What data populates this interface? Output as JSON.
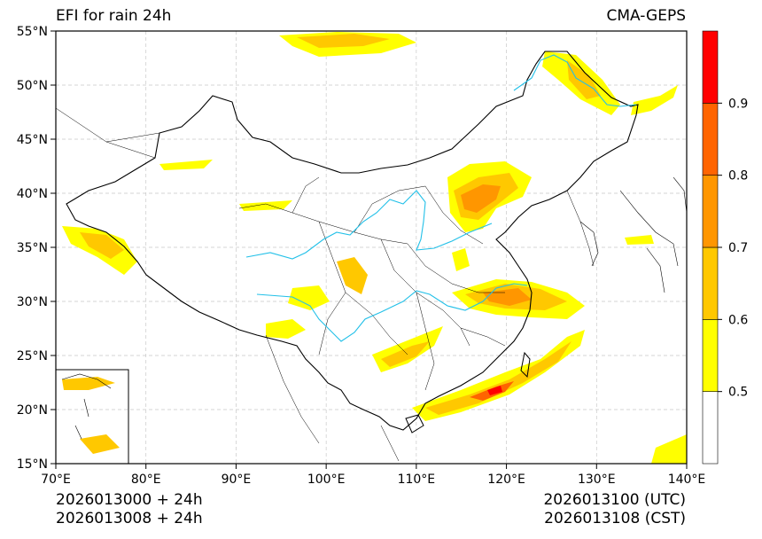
{
  "title_left": "EFI for rain 24h",
  "title_right": "CMA-GEPS",
  "footer": {
    "left_line1": "2026013000 + 24h",
    "left_line2": "2026013008 + 24h",
    "right_line1": "2026013100 (UTC)",
    "right_line2": "2026013108 (CST)"
  },
  "map": {
    "lon_range": [
      70,
      140
    ],
    "lat_range": [
      15,
      55
    ],
    "lon_ticks": [
      "70°E",
      "80°E",
      "90°E",
      "100°E",
      "110°E",
      "120°E",
      "130°E",
      "140°E"
    ],
    "lat_ticks": [
      "15°N",
      "20°N",
      "25°N",
      "30°N",
      "35°N",
      "40°N",
      "45°N",
      "50°N",
      "55°N"
    ],
    "grid": true,
    "inset": "South China Sea (bottom-left)"
  },
  "colorbar": {
    "levels": [
      0.5,
      0.6,
      0.7,
      0.8,
      0.9
    ],
    "labels": [
      "0.5",
      "0.6",
      "0.7",
      "0.8",
      "0.9"
    ],
    "colors": [
      "#ffffff",
      "#ffff00",
      "#ffc800",
      "#ff9600",
      "#ff6400",
      "#ff0000"
    ]
  },
  "colors": {
    "river": "#22c0e8",
    "border": "#000000",
    "grid": "#c8c8c8"
  }
}
